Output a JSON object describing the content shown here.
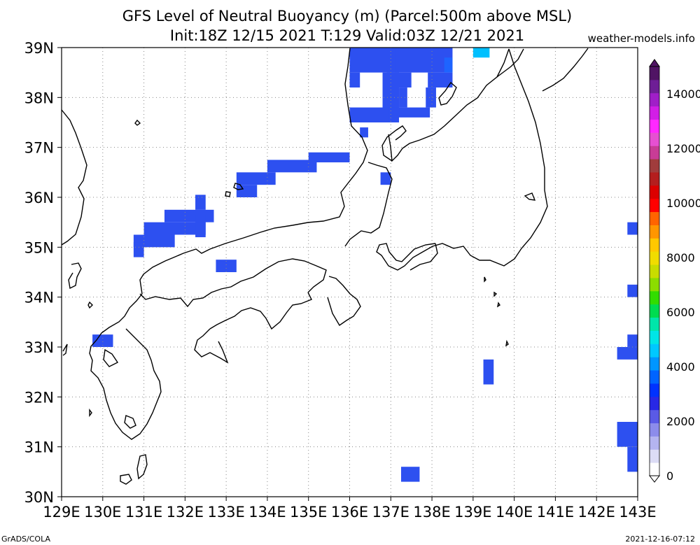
{
  "title": {
    "line1": "GFS Level of Neutral Buoyancy (m) (Parcel:500m above MSL)",
    "line2": "Init:18Z 12/15 2021 T:129 Valid:03Z 12/21 2021"
  },
  "site": "weather-models.info",
  "footer_left": "GrADS/COLA",
  "footer_right": "2021-12-16-07:12",
  "map": {
    "lon_range": [
      129,
      143
    ],
    "lat_range": [
      30,
      39
    ],
    "lon_labels": [
      "129E",
      "130E",
      "131E",
      "132E",
      "133E",
      "134E",
      "135E",
      "136E",
      "137E",
      "138E",
      "139E",
      "140E",
      "141E",
      "142E",
      "143E"
    ],
    "lat_labels": [
      "30N",
      "31N",
      "32N",
      "33N",
      "34N",
      "35N",
      "36N",
      "37N",
      "38N",
      "39N"
    ],
    "grid": true
  },
  "colorbar": {
    "labels": [
      "0",
      "2000",
      "4000",
      "6000",
      "8000",
      "10000",
      "12000",
      "14000"
    ],
    "colors": [
      "#ffffff",
      "#dcdcf5",
      "#b4b4f0",
      "#8c8ceb",
      "#5a5ae6",
      "#2828e6",
      "#0032ff",
      "#0064ff",
      "#0096ff",
      "#00c8ff",
      "#00e6e6",
      "#00e6aa",
      "#00dc50",
      "#32dc00",
      "#8cdc00",
      "#c8dc00",
      "#f0dc00",
      "#ffc800",
      "#ff9600",
      "#ff6400",
      "#ff0000",
      "#dc0000",
      "#b41e1e",
      "#a03c3c",
      "#c83c96",
      "#e650d2",
      "#ff28ff",
      "#d21ee6",
      "#a01ec8",
      "#6e1e96",
      "#501464"
    ]
  },
  "lnb_cells": [
    [
      136.0,
      38.5,
      1.2,
      0.5,
      "#2d50f0"
    ],
    [
      136.0,
      38.2,
      0.25,
      0.3,
      "#2d50f0"
    ],
    [
      136.9,
      38.2,
      0.6,
      0.3,
      "#2d50f0"
    ],
    [
      137.1,
      38.5,
      1.4,
      0.5,
      "#2d50f0"
    ],
    [
      137.9,
      38.2,
      0.6,
      0.3,
      "#2d50f0"
    ],
    [
      138.3,
      38.5,
      0.2,
      0.3,
      "#1e64ff"
    ],
    [
      139.0,
      38.8,
      0.4,
      0.2,
      "#00c0ff"
    ],
    [
      137.2,
      37.8,
      0.2,
      0.4,
      "#2d50f0"
    ],
    [
      137.85,
      37.8,
      0.25,
      0.4,
      "#2d50f0"
    ],
    [
      136.8,
      37.5,
      0.4,
      1.0,
      "#2d50f0"
    ],
    [
      137.0,
      37.6,
      0.95,
      0.2,
      "#2d50f0"
    ],
    [
      136.0,
      37.5,
      0.95,
      0.3,
      "#2d50f0"
    ],
    [
      136.25,
      37.2,
      0.2,
      0.2,
      "#2d50f0"
    ],
    [
      135.0,
      36.7,
      1.0,
      0.2,
      "#2d50f0"
    ],
    [
      134.0,
      36.5,
      1.2,
      0.25,
      "#2d50f0"
    ],
    [
      133.25,
      36.25,
      0.95,
      0.25,
      "#2d50f0"
    ],
    [
      133.25,
      36.0,
      0.5,
      0.25,
      "#2d50f0"
    ],
    [
      136.75,
      36.25,
      0.25,
      0.25,
      "#2d50f0"
    ],
    [
      131.5,
      35.5,
      1.2,
      0.25,
      "#2d50f0"
    ],
    [
      132.25,
      35.75,
      0.25,
      0.3,
      "#2d50f0"
    ],
    [
      131.0,
      35.25,
      1.5,
      0.25,
      "#2d50f0"
    ],
    [
      130.75,
      35.0,
      1.0,
      0.25,
      "#2d50f0"
    ],
    [
      132.25,
      35.2,
      0.25,
      0.45,
      "#2d50f0"
    ],
    [
      130.75,
      34.8,
      0.25,
      0.3,
      "#2d50f0"
    ],
    [
      132.75,
      34.5,
      0.5,
      0.25,
      "#2d50f0"
    ],
    [
      129.75,
      33.0,
      0.5,
      0.25,
      "#2d50f0"
    ],
    [
      137.25,
      30.3,
      0.45,
      0.3,
      "#2d50f0"
    ],
    [
      139.25,
      32.25,
      0.25,
      0.5,
      "#2d50f0"
    ],
    [
      142.75,
      35.25,
      0.25,
      0.25,
      "#2d50f0"
    ],
    [
      142.75,
      34.0,
      0.25,
      0.25,
      "#2d50f0"
    ],
    [
      142.75,
      33.0,
      0.25,
      0.25,
      "#2d50f0"
    ],
    [
      142.5,
      32.75,
      0.5,
      0.25,
      "#2d50f0"
    ],
    [
      142.5,
      31.0,
      0.5,
      0.5,
      "#2d50f0"
    ],
    [
      142.75,
      30.5,
      0.25,
      0.5,
      "#2d50f0"
    ]
  ]
}
